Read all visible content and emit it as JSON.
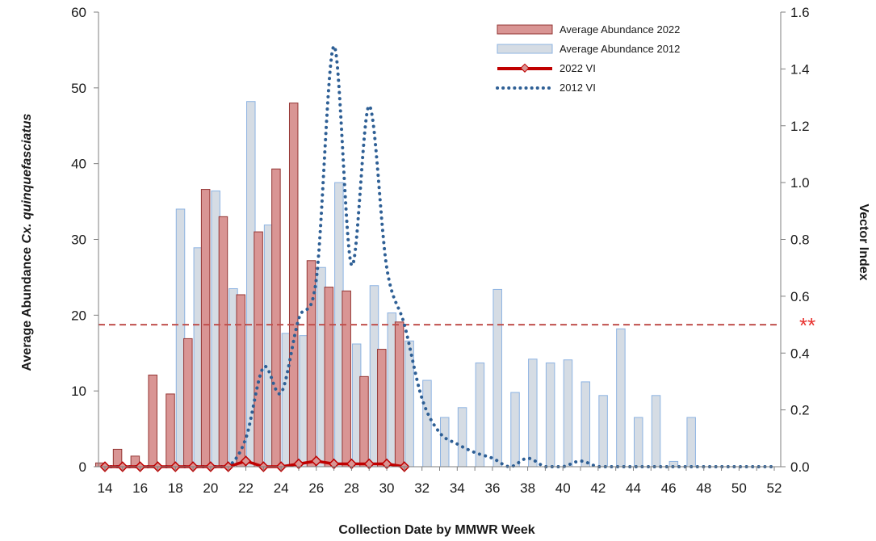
{
  "chart_data": {
    "type": "bar",
    "title": "",
    "xlabel": "Collection Date by MMWR Week",
    "ylabel_prefix": "Average Abundance ",
    "ylabel_italic": "Cx. quinquefasciatus",
    "y2label": "Vector Index",
    "threshold_marker": "**",
    "threshold_vi": 0.5,
    "xlim": [
      14,
      52
    ],
    "ylim": [
      0,
      60
    ],
    "y2lim": [
      0,
      1.6
    ],
    "x_ticks": [
      "14",
      "16",
      "18",
      "20",
      "22",
      "24",
      "26",
      "28",
      "30",
      "32",
      "34",
      "36",
      "38",
      "40",
      "42",
      "44",
      "46",
      "48",
      "50",
      "52"
    ],
    "y_ticks": [
      "0",
      "10",
      "20",
      "30",
      "40",
      "50",
      "60"
    ],
    "y2_ticks": [
      "0.0",
      "0.2",
      "0.4",
      "0.6",
      "0.8",
      "1.0",
      "1.2",
      "1.4",
      "1.6"
    ],
    "legend_position": "top-right",
    "colors": {
      "bar2022_fill": "#d99594",
      "bar2022_stroke": "#943634",
      "bar2012_fill": "#d5dce4",
      "bar2012_stroke": "#8db3e2",
      "vi2022": "#c00000",
      "vi2012": "#2e5f95",
      "threshold": "#c0504d"
    },
    "series": [
      {
        "name": "Average Abundance 2022",
        "kind": "bar",
        "axis": "left",
        "x": [
          14,
          15,
          16,
          17,
          18,
          19,
          20,
          21,
          22,
          23,
          24,
          25,
          26,
          27,
          28,
          29,
          30,
          31
        ],
        "values": [
          0.5,
          2.3,
          1.4,
          12.1,
          9.6,
          16.9,
          36.6,
          33.0,
          22.7,
          31.0,
          39.3,
          48.0,
          27.2,
          23.7,
          23.2,
          11.9,
          15.5,
          19.1
        ]
      },
      {
        "name": "Average Abundance 2012",
        "kind": "bar",
        "axis": "left",
        "x": [
          18,
          19,
          20,
          21,
          22,
          23,
          24,
          25,
          26,
          27,
          28,
          29,
          30,
          31,
          32,
          33,
          34,
          35,
          36,
          37,
          38,
          39,
          40,
          41,
          42,
          43,
          44,
          45,
          46,
          47
        ],
        "values": [
          34.0,
          28.9,
          36.4,
          23.5,
          48.2,
          31.9,
          17.6,
          17.3,
          26.3,
          37.5,
          16.2,
          23.9,
          20.3,
          16.6,
          11.4,
          6.5,
          7.8,
          13.7,
          23.4,
          9.8,
          14.2,
          13.7,
          14.1,
          11.2,
          9.4,
          18.2,
          6.5,
          9.4,
          0.7,
          6.5
        ]
      },
      {
        "name": "2022 VI",
        "kind": "line",
        "axis": "right",
        "x": [
          14,
          15,
          16,
          17,
          18,
          19,
          20,
          21,
          22,
          23,
          24,
          25,
          26,
          27,
          28,
          29,
          30,
          31
        ],
        "values": [
          0.0,
          0.0,
          0.0,
          0.0,
          0.0,
          0.0,
          0.0,
          0.0,
          0.02,
          0.0,
          0.0,
          0.01,
          0.02,
          0.01,
          0.01,
          0.01,
          0.01,
          0.0
        ]
      },
      {
        "name": "2012 VI",
        "kind": "line",
        "axis": "right",
        "x": [
          14,
          15,
          16,
          17,
          18,
          19,
          20,
          21,
          22,
          23,
          24,
          25,
          26,
          27,
          28,
          29,
          30,
          31,
          32,
          33,
          34,
          35,
          36,
          37,
          38,
          39,
          40,
          41,
          42,
          43,
          44,
          45,
          46,
          47,
          48,
          49,
          50,
          51,
          52
        ],
        "values": [
          0.0,
          0.0,
          0.0,
          0.0,
          0.0,
          0.0,
          0.0,
          0.0,
          0.1,
          0.35,
          0.26,
          0.52,
          0.66,
          1.48,
          0.71,
          1.27,
          0.7,
          0.5,
          0.24,
          0.12,
          0.08,
          0.05,
          0.03,
          0.0,
          0.03,
          0.0,
          0.0,
          0.02,
          0.0,
          0.0,
          0.0,
          0.0,
          0.0,
          0.0,
          0.0,
          0.0,
          0.0,
          0.0,
          0.0
        ]
      }
    ]
  }
}
